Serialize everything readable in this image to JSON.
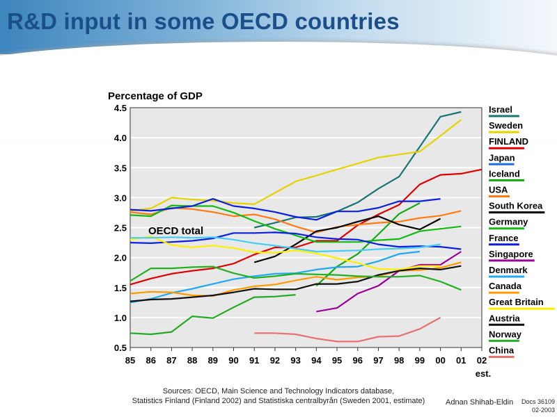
{
  "page": {
    "title": "R&D input in some OECD countries",
    "sources_line1": "Sources: OECD, Main Science and Technology Indicators database,",
    "sources_line2": "Statistics Finland (Finland 2002) and Statistiska centralbyrån (Sweden 2001, estimate)",
    "author": "Adnan Shihab-Eldin",
    "docs_id": "Docs 36109",
    "docs_date": "02-2003"
  },
  "chart_data": {
    "type": "line",
    "title": "R&D input in some OECD countries",
    "ylabel": "Percentage of GDP",
    "xlabel": "",
    "ylim": [
      0.5,
      4.5
    ],
    "yticks": [
      "0.5",
      "1.0",
      "1.5",
      "2.0",
      "2.5",
      "3.0",
      "3.5",
      "4.0",
      "4.5"
    ],
    "ytick_values": [
      0.5,
      1.0,
      1.5,
      2.0,
      2.5,
      3.0,
      3.5,
      4.0,
      4.5
    ],
    "x": [
      "85",
      "86",
      "87",
      "88",
      "89",
      "90",
      "91",
      "92",
      "93",
      "94",
      "95",
      "96",
      "97",
      "98",
      "99",
      "00",
      "01",
      "02"
    ],
    "x_note": "est.",
    "grid": true,
    "legend": "right",
    "annotation": "OECD total",
    "series": [
      {
        "name": "Israel",
        "color": "#1a7373",
        "values": [
          null,
          null,
          null,
          null,
          null,
          null,
          2.5,
          2.58,
          2.67,
          2.68,
          2.77,
          2.92,
          3.15,
          3.35,
          3.85,
          4.35,
          4.43,
          null
        ]
      },
      {
        "name": "Sweden",
        "color": "#e6d200",
        "values": [
          2.78,
          2.82,
          3.0,
          2.97,
          2.95,
          2.91,
          2.89,
          3.08,
          3.27,
          3.37,
          3.47,
          3.57,
          3.67,
          3.72,
          3.77,
          4.03,
          4.3,
          null
        ]
      },
      {
        "name": "FINLAND",
        "color": "#e00000",
        "values": [
          1.55,
          1.65,
          1.73,
          1.78,
          1.82,
          1.9,
          2.05,
          2.17,
          2.17,
          2.28,
          2.28,
          2.54,
          2.72,
          2.88,
          3.22,
          3.38,
          3.4,
          3.47
        ]
      },
      {
        "name": "Japan",
        "color": "#1e6fe6",
        "values": [
          null,
          null,
          null,
          null,
          null,
          null,
          null,
          null,
          null,
          null,
          null,
          null,
          null,
          null,
          null,
          null,
          null,
          null
        ]
      },
      {
        "name": "Iceland",
        "color": "#11aa11",
        "values": [
          null,
          null,
          null,
          null,
          null,
          null,
          null,
          null,
          null,
          1.53,
          1.85,
          2.06,
          2.39,
          2.73,
          2.91,
          null,
          null,
          null
        ]
      },
      {
        "name": "USA",
        "color": "#ff7a10",
        "values": [
          2.76,
          2.72,
          2.83,
          2.81,
          2.76,
          2.69,
          2.72,
          2.64,
          2.52,
          2.42,
          2.51,
          2.55,
          2.58,
          2.6,
          2.66,
          2.7,
          2.78,
          null
        ]
      },
      {
        "name": "South Korea",
        "color": "#000000",
        "values": [
          null,
          null,
          null,
          null,
          null,
          null,
          1.92,
          2.02,
          2.22,
          2.44,
          2.5,
          2.6,
          2.69,
          2.55,
          2.47,
          2.65,
          null,
          null
        ]
      },
      {
        "name": "Germany",
        "color": "#11bb11",
        "values": [
          2.71,
          2.69,
          2.87,
          2.86,
          2.86,
          2.75,
          2.61,
          2.48,
          2.37,
          2.26,
          2.26,
          2.26,
          2.29,
          2.31,
          2.44,
          2.48,
          2.52,
          null
        ]
      },
      {
        "name": "France",
        "color": "#0a1fe0",
        "values": [
          2.25,
          2.24,
          2.26,
          2.28,
          2.32,
          2.41,
          2.41,
          2.42,
          2.4,
          2.34,
          2.31,
          2.3,
          2.22,
          2.18,
          2.19,
          2.18,
          2.14,
          null
        ]
      },
      {
        "name": "Japan (upper)",
        "color": "#0a1fe0",
        "values": [
          2.8,
          2.78,
          2.82,
          2.86,
          2.98,
          2.86,
          2.82,
          2.76,
          2.68,
          2.63,
          2.77,
          2.77,
          2.83,
          2.94,
          2.94,
          2.98,
          null,
          null
        ]
      },
      {
        "name": "Singapore",
        "color": "#990099",
        "values": [
          null,
          null,
          null,
          null,
          null,
          null,
          null,
          null,
          null,
          1.1,
          1.16,
          1.4,
          1.53,
          1.78,
          1.88,
          1.88,
          2.1,
          null
        ]
      },
      {
        "name": "Denmark",
        "color": "#20a8f0",
        "values": [
          1.25,
          1.31,
          1.41,
          1.48,
          1.56,
          1.64,
          1.69,
          1.73,
          1.74,
          1.8,
          1.84,
          1.85,
          1.94,
          2.06,
          2.1,
          null,
          null,
          null
        ]
      },
      {
        "name": "Canada",
        "color": "#ff9a00",
        "values": [
          1.4,
          1.43,
          1.42,
          1.37,
          1.36,
          1.46,
          1.52,
          1.55,
          1.62,
          1.68,
          1.63,
          1.67,
          1.69,
          1.78,
          1.79,
          1.83,
          1.92,
          null
        ]
      },
      {
        "name": "Great Britain",
        "color": "#ffee00",
        "values": [
          2.3,
          2.35,
          2.21,
          2.17,
          2.2,
          2.16,
          2.09,
          2.08,
          2.12,
          2.07,
          1.99,
          1.91,
          1.81,
          1.8,
          1.86,
          1.86,
          null,
          null
        ]
      },
      {
        "name": "Austria",
        "color": "#111111",
        "values": [
          1.27,
          1.3,
          1.31,
          1.34,
          1.37,
          1.42,
          1.48,
          1.47,
          1.47,
          1.56,
          1.56,
          1.6,
          1.71,
          1.78,
          1.82,
          1.8,
          1.86,
          null
        ]
      },
      {
        "name": "Norway",
        "color": "#22b022",
        "values": [
          1.61,
          1.82,
          1.82,
          1.84,
          1.85,
          1.74,
          1.66,
          1.69,
          1.73,
          1.72,
          1.71,
          1.69,
          1.68,
          1.68,
          1.7,
          1.6,
          1.46,
          null
        ]
      },
      {
        "name": "OECD total (light blue)",
        "color": "#44ccf5",
        "values": [
          2.33,
          2.33,
          2.34,
          2.33,
          2.34,
          2.3,
          2.24,
          2.2,
          2.15,
          2.1,
          2.11,
          2.12,
          2.14,
          2.15,
          2.17,
          2.22,
          null,
          null
        ]
      },
      {
        "name": "Iceland (early)",
        "color": "#22aa22",
        "values": [
          0.74,
          0.72,
          0.76,
          1.02,
          0.99,
          1.17,
          1.34,
          1.35,
          1.38,
          null,
          null,
          null,
          null,
          null,
          null,
          null,
          null,
          null
        ]
      },
      {
        "name": "China",
        "color": "#e87070",
        "values": [
          null,
          null,
          null,
          null,
          null,
          null,
          0.74,
          0.74,
          0.72,
          0.65,
          0.6,
          0.6,
          0.68,
          0.69,
          0.81,
          1.0,
          null,
          null
        ]
      }
    ],
    "legend_entries": [
      {
        "label": "Israel",
        "color": "#1a7373"
      },
      {
        "label": "Sweden",
        "color": "#e6d200"
      },
      {
        "label": "FINLAND",
        "color": "#e00000"
      },
      {
        "label": "Japan",
        "color": "#1e6fe6"
      },
      {
        "label": "Iceland",
        "color": "#11aa11"
      },
      {
        "label": "USA",
        "color": "#ff7a10"
      },
      {
        "label": "South Korea",
        "color": "#000000"
      },
      {
        "label": "Germany",
        "color": "#11bb11"
      },
      {
        "label": "France",
        "color": "#0a1fe0"
      },
      {
        "label": "Singapore",
        "color": "#990099"
      },
      {
        "label": "Denmark",
        "color": "#20a8f0"
      },
      {
        "label": "Canada",
        "color": "#ff9a00"
      },
      {
        "label": "Great Britain",
        "color": "#ffee00"
      },
      {
        "label": "Austria",
        "color": "#111111"
      },
      {
        "label": "Norway",
        "color": "#22b022"
      },
      {
        "label": "China",
        "color": "#e87070"
      }
    ]
  }
}
